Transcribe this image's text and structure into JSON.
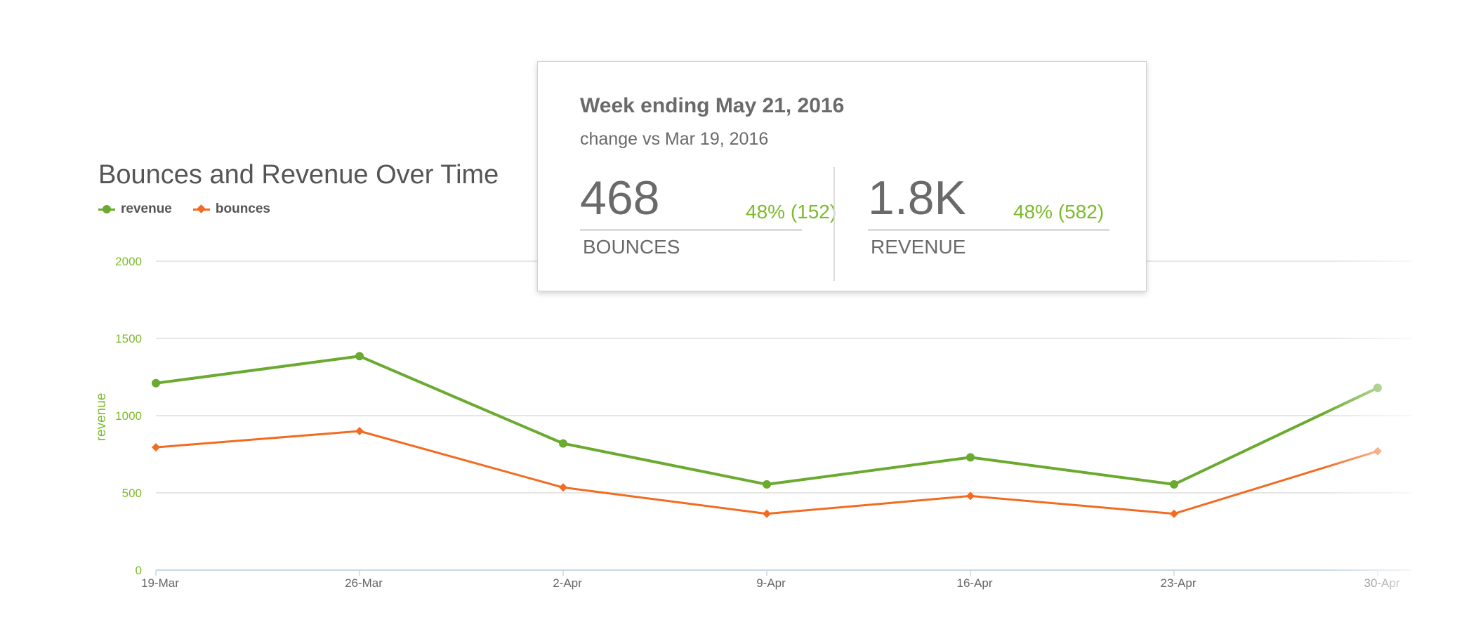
{
  "chart_data": {
    "type": "line",
    "title": "Bounces and Revenue Over Time",
    "xlabel": "",
    "ylabel": "revenue",
    "ylim": [
      0,
      2000
    ],
    "yticks": [
      "0",
      "500",
      "1000",
      "1500",
      "2000"
    ],
    "categories": [
      "19-Mar",
      "26-Mar",
      "2-Apr",
      "9-Apr",
      "16-Apr",
      "23-Apr",
      "30-Apr"
    ],
    "series": [
      {
        "name": "revenue",
        "values": [
          1210,
          1385,
          820,
          555,
          730,
          555,
          1180
        ],
        "color": "#6aaa2e",
        "marker": "circle"
      },
      {
        "name": "bounces",
        "values": [
          795,
          900,
          535,
          365,
          480,
          365,
          770
        ],
        "color": "#f26b21",
        "marker": "diamond"
      }
    ],
    "grid": true,
    "legend": "top-left"
  },
  "tooltip": {
    "title": "Week ending May 21, 2016",
    "subtitle": "change vs Mar 19, 2016",
    "metrics": [
      {
        "value": "468",
        "change": "48% (152)",
        "label": "BOUNCES"
      },
      {
        "value": "1.8K",
        "change": "48% (582)",
        "label": "REVENUE"
      }
    ]
  },
  "colors": {
    "axis_text": "#7cbb2b",
    "grid": "#dddddd",
    "positive_change": "#7cbb2b"
  }
}
